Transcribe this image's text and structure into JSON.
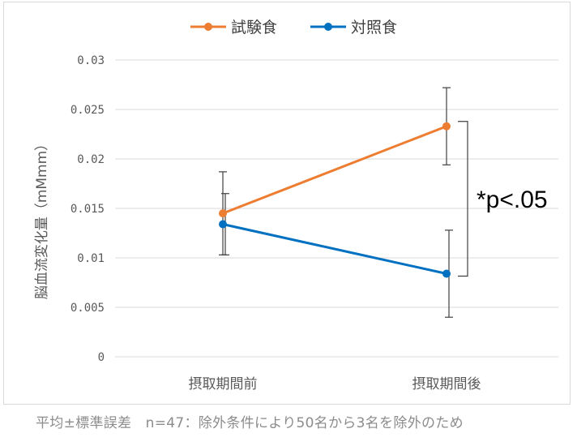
{
  "chart_data": {
    "type": "line",
    "categories": [
      "摂取期間前",
      "摂取期間後"
    ],
    "series": [
      {
        "name": "試験食",
        "values": [
          0.0145,
          0.0233
        ],
        "error": [
          0.0042,
          0.0039
        ],
        "color": "#ED7D31"
      },
      {
        "name": "対照食",
        "values": [
          0.0134,
          0.0084
        ],
        "error": [
          0.0031,
          0.0044
        ],
        "color": "#0070C0"
      }
    ],
    "ylabel": "脳血流変化量（mMmm）",
    "ylim": [
      0,
      0.03
    ],
    "yticks": [
      "0",
      "0.005",
      "0.01",
      "0.015",
      "0.02",
      "0.025",
      "0.03"
    ],
    "grid": true,
    "legend": "top-center",
    "annotation": "*p<.05"
  },
  "footnote": "平均±標準誤差　n=47：除外条件により50名から3名を除外のため"
}
